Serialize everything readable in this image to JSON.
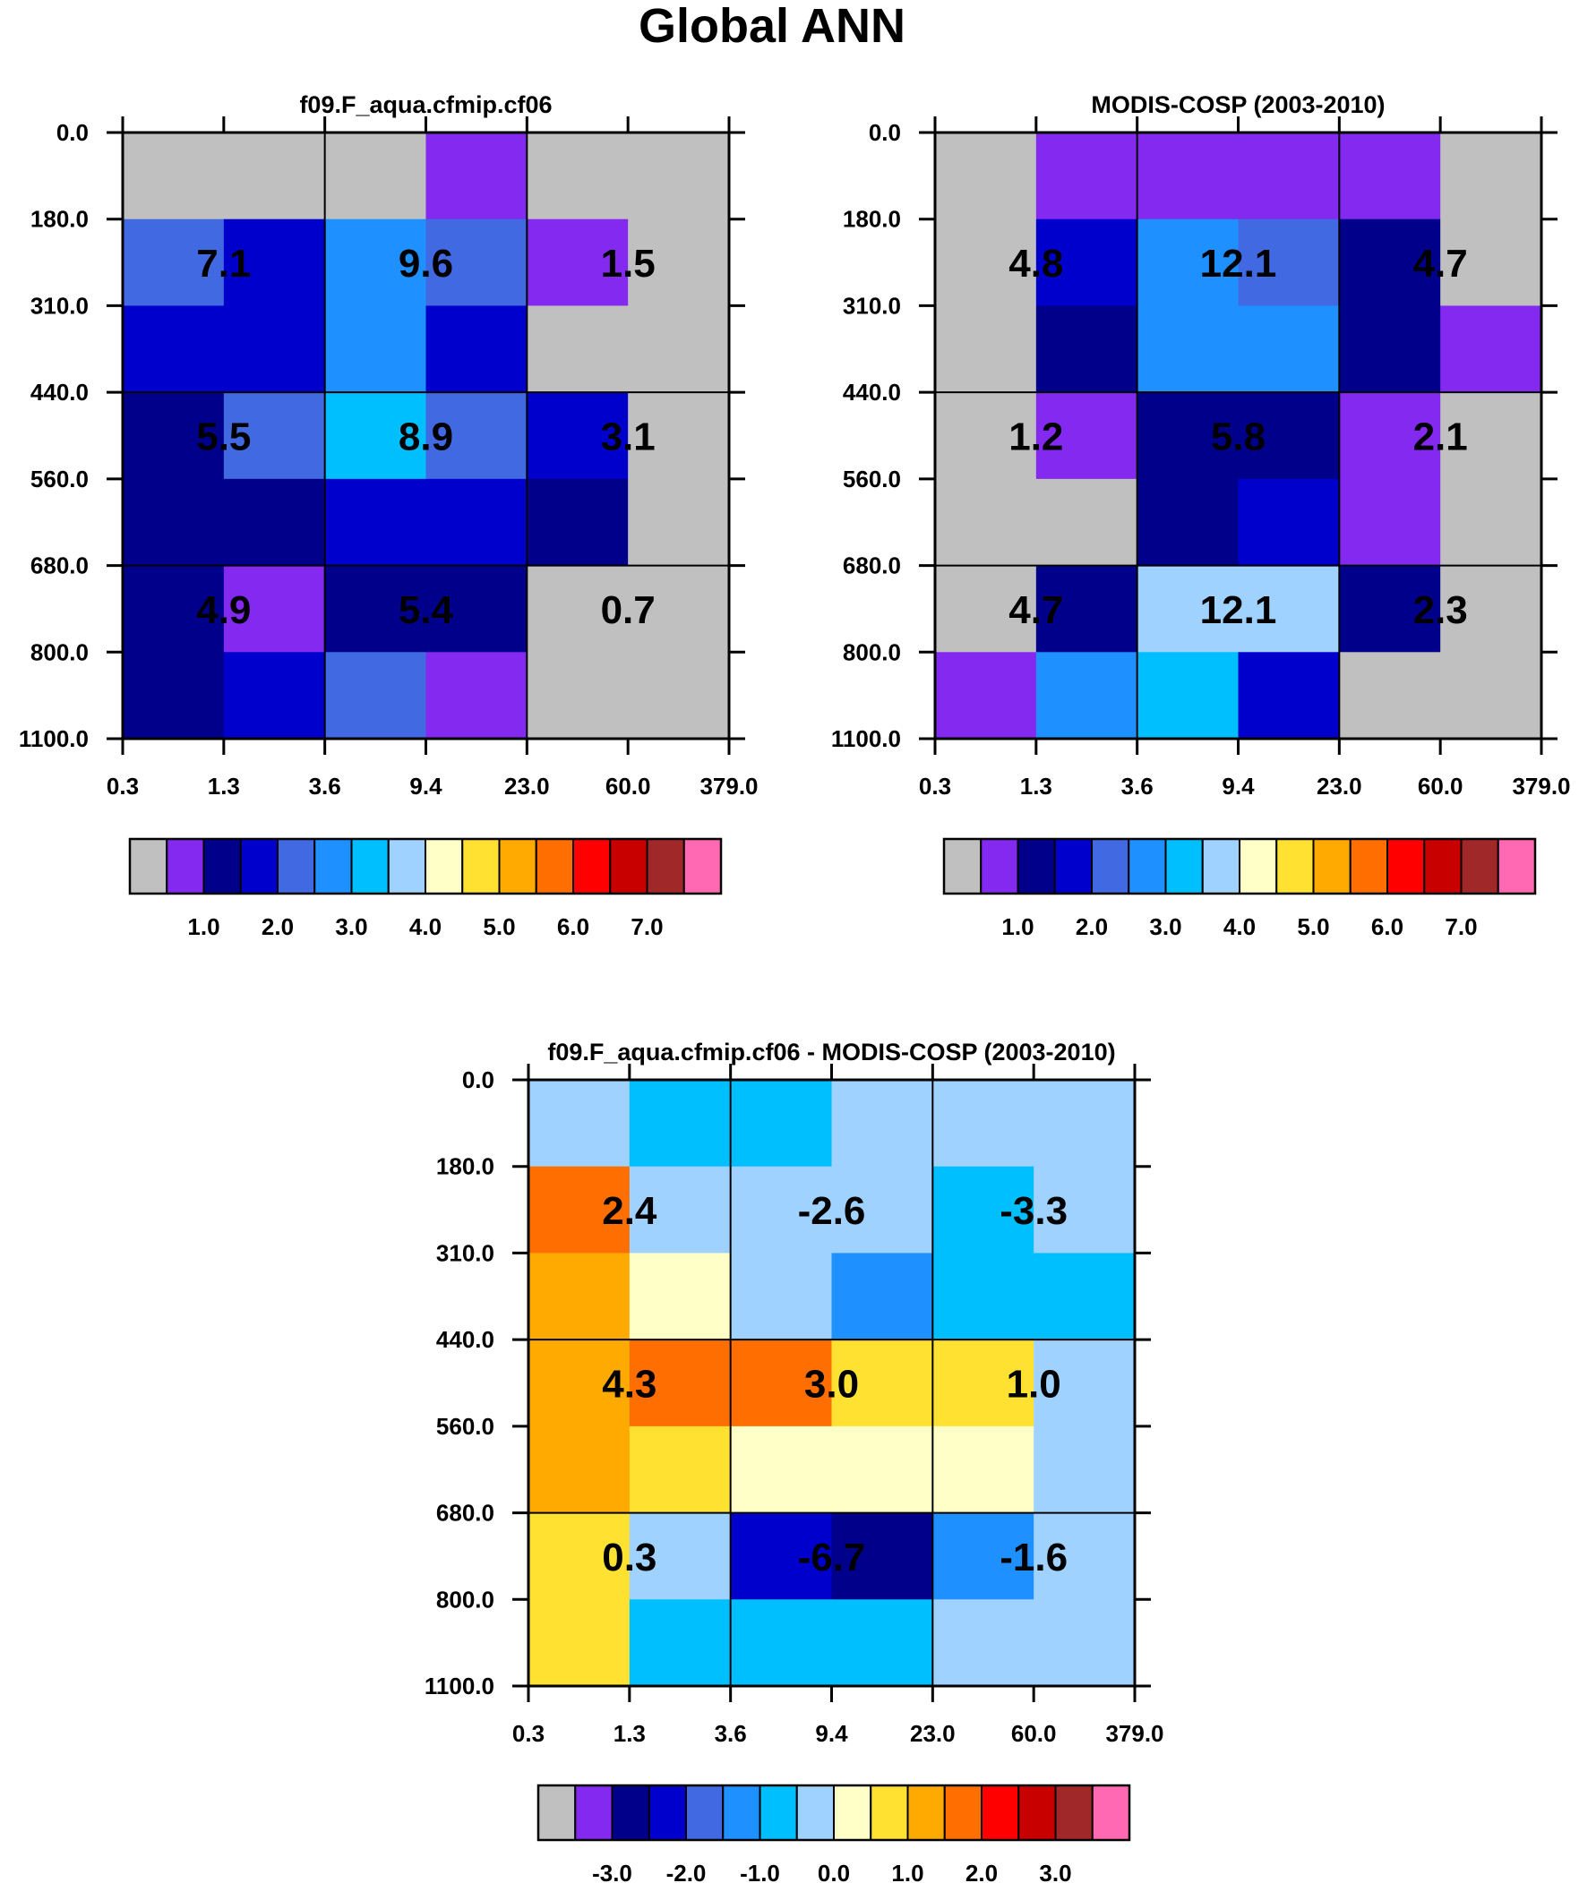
{
  "page_title": "Global ANN",
  "colors": {
    "abs_palette": [
      "#c0c0c0",
      "#8429f0",
      "#00008b",
      "#0000cd",
      "#4169e1",
      "#1e90ff",
      "#00bfff",
      "#a0d2ff",
      "#ffffc8",
      "#ffe132",
      "#ffaa00",
      "#ff6e00",
      "#ff0000",
      "#c80000",
      "#a02828",
      "#ff69b4"
    ],
    "diff_palette": [
      "#c0c0c0",
      "#8429f0",
      "#00008b",
      "#0000cd",
      "#4169e1",
      "#1e90ff",
      "#00bfff",
      "#a0d2ff",
      "#ffffc8",
      "#ffe132",
      "#ffaa00",
      "#ff6e00",
      "#ff0000",
      "#c80000",
      "#a02828",
      "#ff69b4"
    ]
  },
  "chart_data": [
    {
      "type": "heatmap",
      "title": "f09.F_aqua.cfmip.cf06",
      "x_ticks": [
        "0.3",
        "1.3",
        "3.6",
        "9.4",
        "23.0",
        "60.0",
        "379.0"
      ],
      "y_ticks": [
        "0.0",
        "180.0",
        "310.0",
        "440.0",
        "560.0",
        "680.0",
        "800.0",
        "1100.0"
      ],
      "cell_color_index": [
        [
          0,
          0,
          0,
          1,
          0,
          0
        ],
        [
          4,
          3,
          5,
          4,
          1,
          0
        ],
        [
          3,
          3,
          5,
          3,
          0,
          0
        ],
        [
          2,
          4,
          6,
          4,
          3,
          0
        ],
        [
          2,
          2,
          3,
          3,
          2,
          0
        ],
        [
          2,
          1,
          2,
          2,
          0,
          0
        ],
        [
          2,
          3,
          4,
          1,
          0,
          0
        ]
      ],
      "group_values": [
        [
          "7.1",
          "9.6",
          "1.5"
        ],
        [
          "5.5",
          "8.9",
          "3.1"
        ],
        [
          "4.9",
          "5.4",
          "0.7"
        ]
      ],
      "colorbar_labels": [
        "1.0",
        "2.0",
        "3.0",
        "4.0",
        "5.0",
        "6.0",
        "7.0"
      ]
    },
    {
      "type": "heatmap",
      "title": "MODIS-COSP (2003-2010)",
      "x_ticks": [
        "0.3",
        "1.3",
        "3.6",
        "9.4",
        "23.0",
        "60.0",
        "379.0"
      ],
      "y_ticks": [
        "0.0",
        "180.0",
        "310.0",
        "440.0",
        "560.0",
        "680.0",
        "800.0",
        "1100.0"
      ],
      "cell_color_index": [
        [
          0,
          1,
          1,
          1,
          1,
          0
        ],
        [
          0,
          3,
          5,
          4,
          2,
          0
        ],
        [
          0,
          2,
          5,
          5,
          2,
          1
        ],
        [
          0,
          1,
          2,
          2,
          1,
          0
        ],
        [
          0,
          0,
          2,
          3,
          1,
          0
        ],
        [
          0,
          2,
          7,
          7,
          2,
          0
        ],
        [
          1,
          5,
          6,
          3,
          0,
          0
        ]
      ],
      "group_values": [
        [
          "4.8",
          "12.1",
          "4.7"
        ],
        [
          "1.2",
          "5.8",
          "2.1"
        ],
        [
          "4.7",
          "12.1",
          "2.3"
        ]
      ],
      "colorbar_labels": [
        "1.0",
        "2.0",
        "3.0",
        "4.0",
        "5.0",
        "6.0",
        "7.0"
      ]
    },
    {
      "type": "heatmap",
      "title": "f09.F_aqua.cfmip.cf06 - MODIS-COSP (2003-2010)",
      "x_ticks": [
        "0.3",
        "1.3",
        "3.6",
        "9.4",
        "23.0",
        "60.0",
        "379.0"
      ],
      "y_ticks": [
        "0.0",
        "180.0",
        "310.0",
        "440.0",
        "560.0",
        "680.0",
        "800.0",
        "1100.0"
      ],
      "cell_color_index": [
        [
          7,
          6,
          6,
          7,
          7,
          7
        ],
        [
          11,
          7,
          7,
          7,
          6,
          7
        ],
        [
          10,
          8,
          7,
          5,
          6,
          6
        ],
        [
          10,
          11,
          11,
          9,
          9,
          7
        ],
        [
          10,
          9,
          8,
          8,
          8,
          7
        ],
        [
          9,
          7,
          3,
          2,
          5,
          7
        ],
        [
          9,
          6,
          6,
          6,
          7,
          7
        ]
      ],
      "group_values": [
        [
          "2.4",
          "-2.6",
          "-3.3"
        ],
        [
          "4.3",
          "3.0",
          "1.0"
        ],
        [
          "0.3",
          "-6.7",
          "-1.6"
        ]
      ],
      "colorbar_labels": [
        "-3.0",
        "-2.0",
        "-1.0",
        "0.0",
        "1.0",
        "2.0",
        "3.0"
      ]
    }
  ]
}
